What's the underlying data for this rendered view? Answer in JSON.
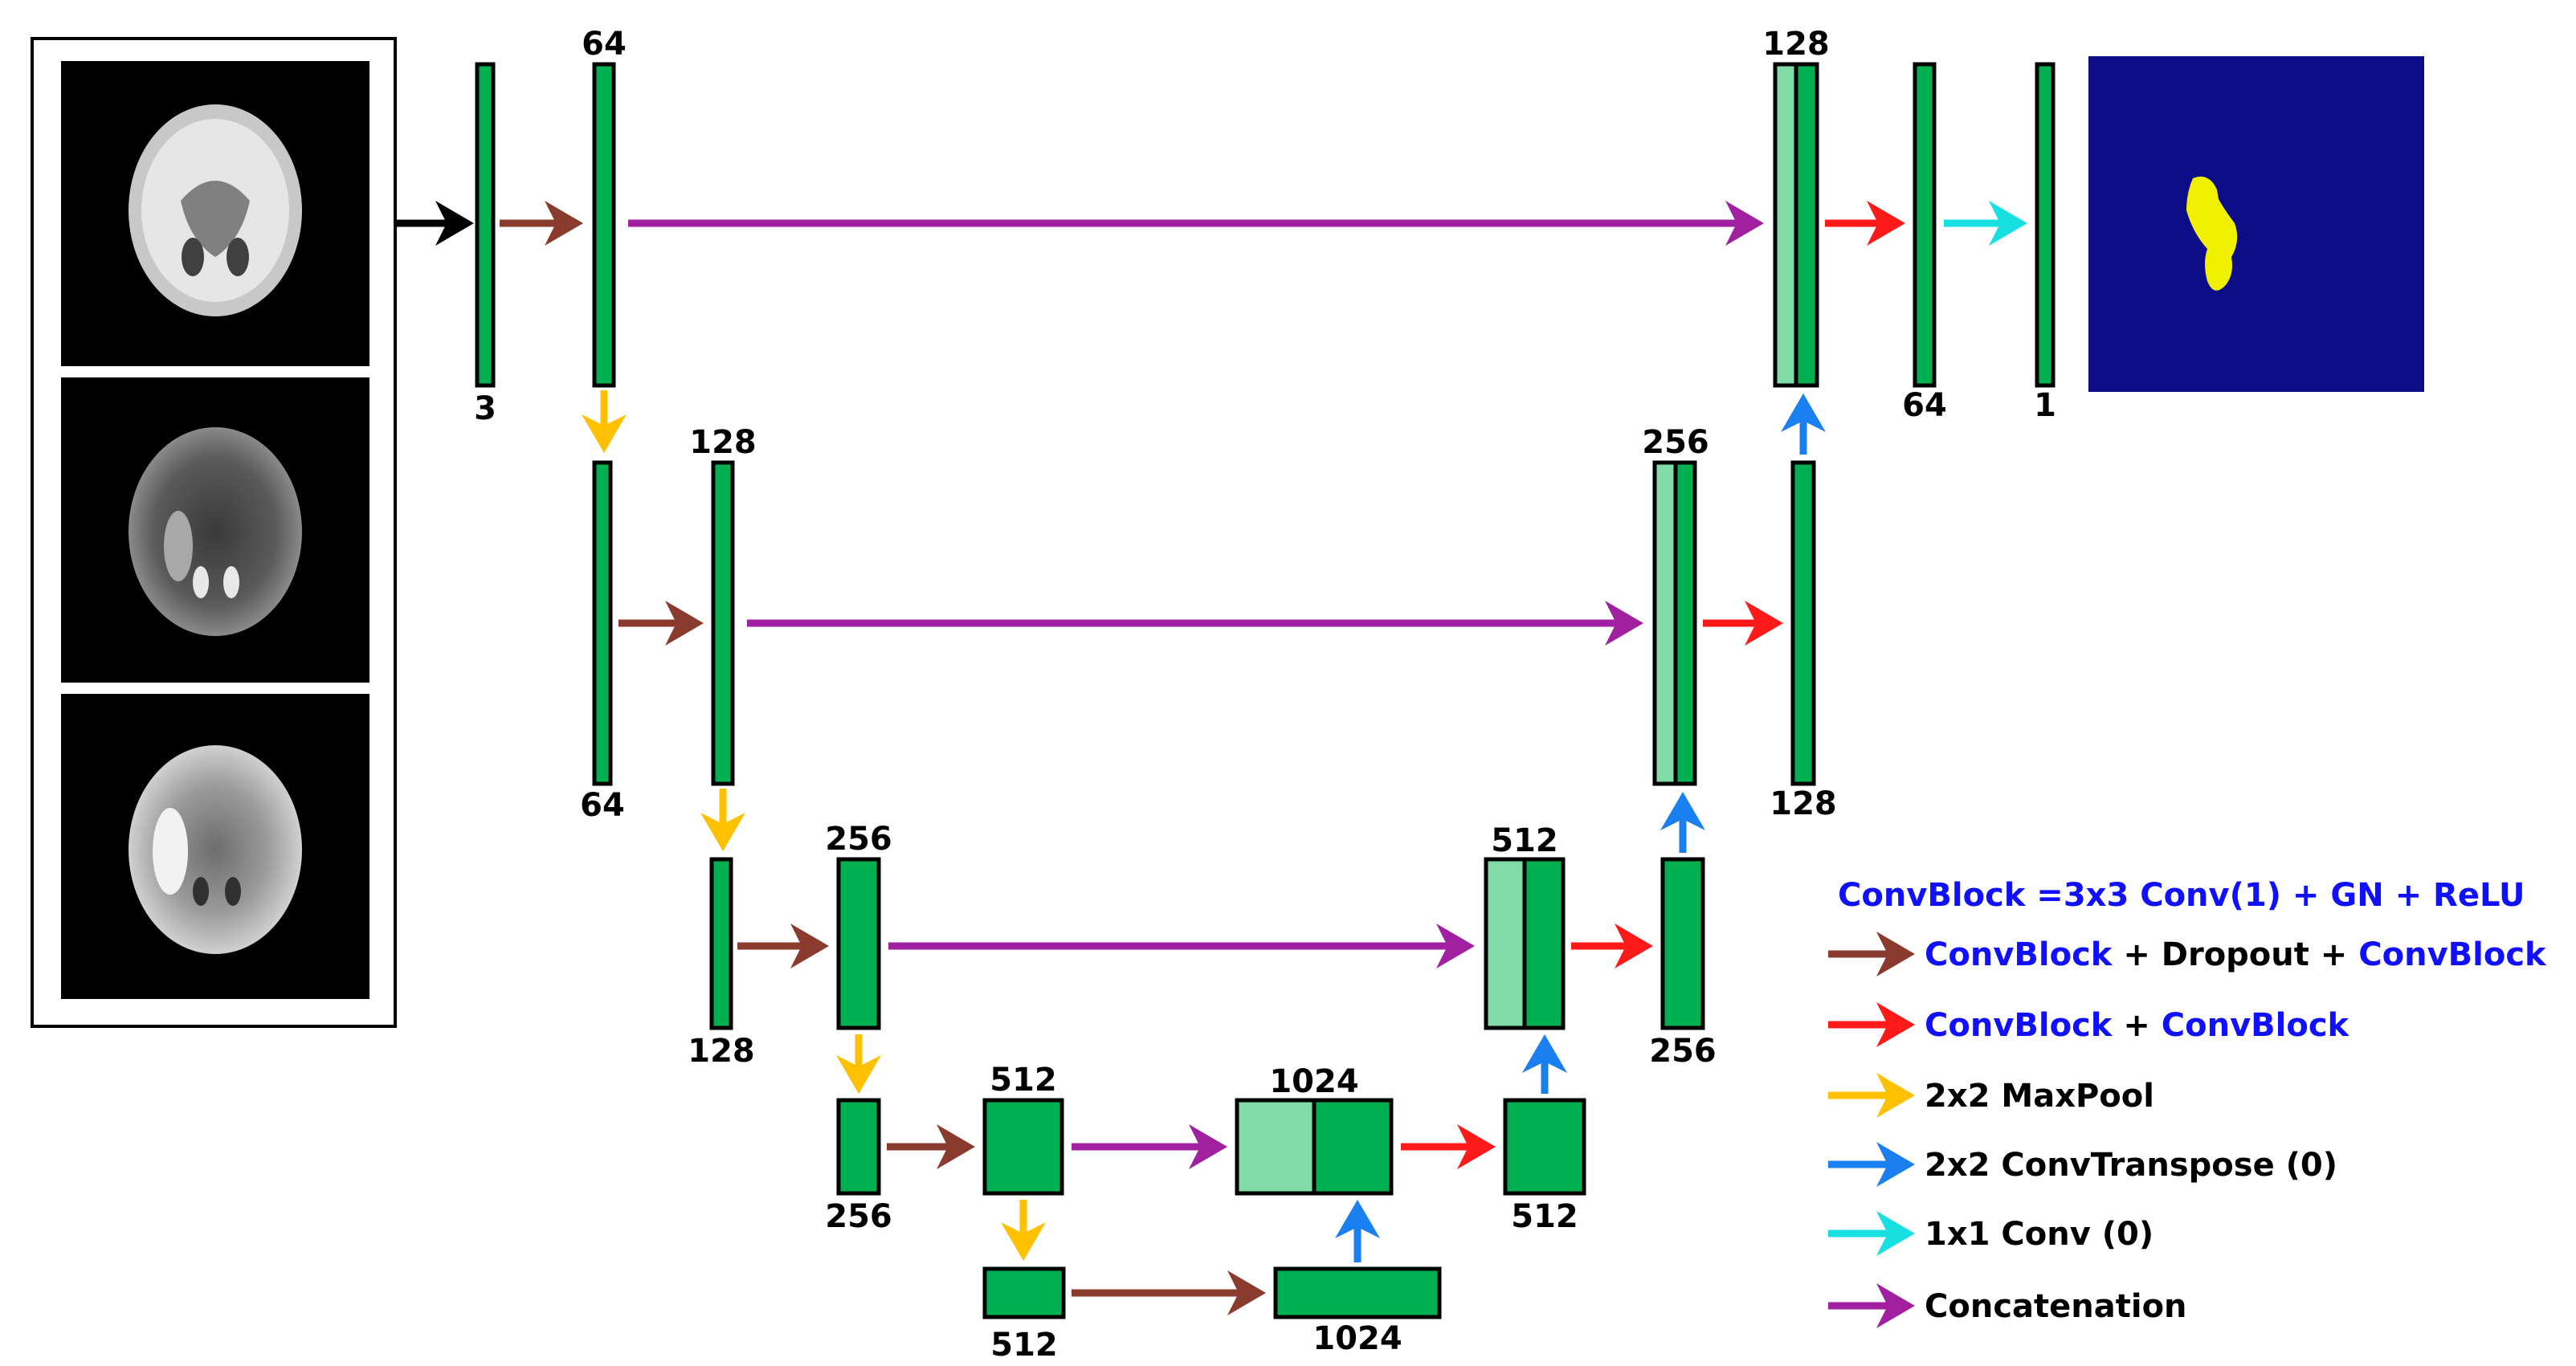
{
  "colors": {
    "block": "#00b050",
    "concat_block": "#80dba6",
    "seg_bg": "#0d0d88",
    "seg_fg": "#f0f000",
    "conv_dropout": "#8b3a2e",
    "conv_conv": "#ff1a1a",
    "maxpool": "#ffc000",
    "convtranspose": "#1a7ff0",
    "conv1x1": "#19e0e0",
    "concat": "#a020a0",
    "input": "#000000",
    "legend_blue": "#1010ff"
  },
  "icons": {
    "input_images": [
      "brain-mri-t1-icon",
      "brain-mri-t2-icon",
      "brain-mri-flair-icon"
    ],
    "output": "segmentation-mask-icon"
  },
  "labels": {
    "enc1_in": "3",
    "enc1_out": "64",
    "enc2_in": "64",
    "enc2_out": "128",
    "enc3_in": "128",
    "enc3_out": "256",
    "enc4_in": "256",
    "enc4_out": "512",
    "bottleneck_in": "512",
    "bottleneck_out": "1024",
    "dec4_concat": "1024",
    "dec4_out": "512",
    "dec3_concat": "512",
    "dec3_out": "256",
    "dec2_concat": "256",
    "dec2_out": "128",
    "dec1_concat": "128",
    "dec1_out": "64",
    "final_out": "1"
  },
  "legend": {
    "title": "ConvBlock =3x3 Conv(1) + GN + ReLU",
    "items": [
      {
        "kind": "conv_dropout",
        "parts": [
          {
            "text": "ConvBlock",
            "blue": true
          },
          {
            "text": " + Dropout + ",
            "blue": false
          },
          {
            "text": "ConvBlock",
            "blue": true
          }
        ]
      },
      {
        "kind": "conv_conv",
        "parts": [
          {
            "text": "ConvBlock",
            "blue": true
          },
          {
            "text": " + ",
            "blue": false
          },
          {
            "text": "ConvBlock",
            "blue": true
          }
        ]
      },
      {
        "kind": "maxpool",
        "parts": [
          {
            "text": "2x2 MaxPool",
            "blue": false
          }
        ]
      },
      {
        "kind": "convtranspose",
        "parts": [
          {
            "text": "2x2 ConvTranspose (0)",
            "blue": false
          }
        ]
      },
      {
        "kind": "conv1x1",
        "parts": [
          {
            "text": "1x1 Conv (0)",
            "blue": false
          }
        ]
      },
      {
        "kind": "concat",
        "parts": [
          {
            "text": "Concatenation",
            "blue": false
          }
        ]
      }
    ]
  }
}
